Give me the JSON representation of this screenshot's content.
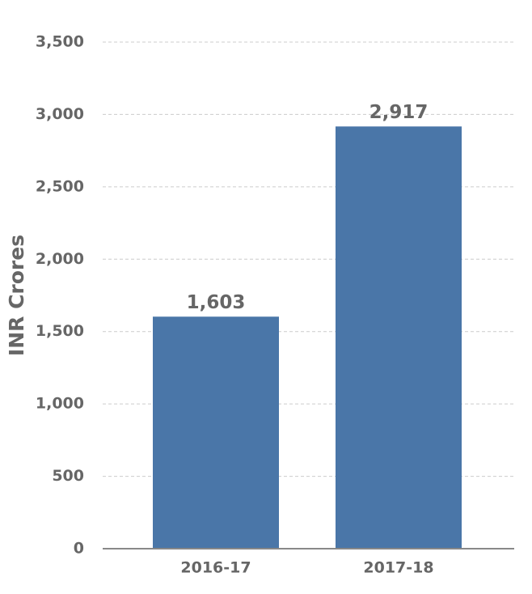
{
  "chart_data": {
    "type": "bar",
    "y_label": "INR Crores",
    "categories": [
      "2016-17",
      "2017-18"
    ],
    "values": [
      1603,
      2917
    ],
    "value_labels": [
      "1,603",
      "2,917"
    ],
    "color": "#4a76a8",
    "ylim": [
      0,
      3500
    ],
    "yticks": [
      0,
      500,
      {
        "value": 1000,
        "label": "1,000"
      },
      {
        "value": 1500,
        "label": "1,500"
      },
      {
        "value": 2000,
        "label": "2,000"
      },
      {
        "value": 2500,
        "label": "2,500"
      },
      {
        "value": 3000,
        "label": "3,000"
      },
      {
        "value": 3500,
        "label": "3,500"
      }
    ],
    "grid": true
  }
}
